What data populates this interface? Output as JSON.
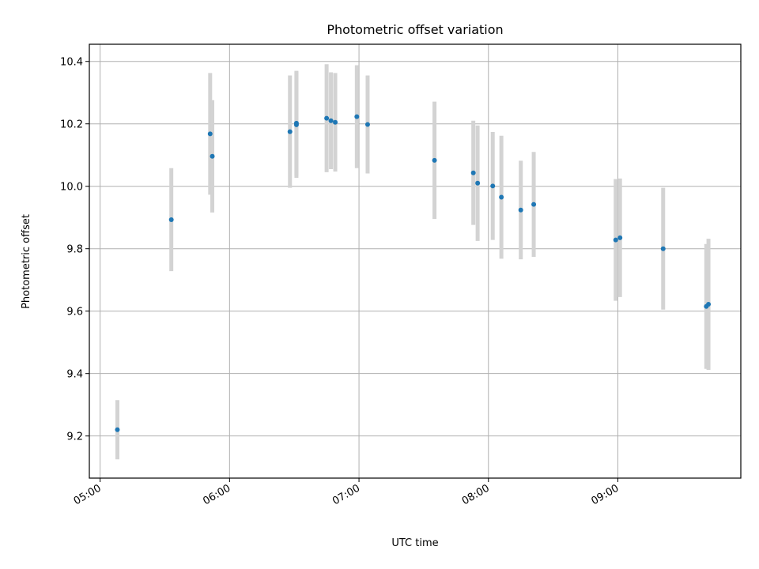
{
  "chart_data": {
    "type": "scatter",
    "title": "Photometric offset variation",
    "xlabel": "UTC time",
    "ylabel": "Photometric offset",
    "grid": true,
    "xlim": [
      "04:55",
      "09:57"
    ],
    "ylim": [
      9.065,
      10.455
    ],
    "x_ticks": [
      "05:00",
      "06:00",
      "07:00",
      "08:00",
      "09:00"
    ],
    "y_ticks": [
      "9.2",
      "9.4",
      "9.6",
      "9.8",
      "10.0",
      "10.2",
      "10.4"
    ],
    "colors": {
      "point": "#1f77b4",
      "errorbar": "#d3d3d3",
      "grid": "#b0b0b0"
    },
    "points": [
      {
        "t": "05:08",
        "y": 9.22,
        "err": 0.095
      },
      {
        "t": "05:33",
        "y": 9.893,
        "err": 0.165
      },
      {
        "t": "05:51",
        "y": 10.168,
        "err": 0.195
      },
      {
        "t": "05:52",
        "y": 10.096,
        "err": 0.18
      },
      {
        "t": "06:28",
        "y": 10.175,
        "err": 0.18
      },
      {
        "t": "06:31",
        "y": 10.202,
        "err": 0.168
      },
      {
        "t": "06:31",
        "y": 10.197,
        "err": 0.17
      },
      {
        "t": "06:45",
        "y": 10.218,
        "err": 0.173
      },
      {
        "t": "06:47",
        "y": 10.21,
        "err": 0.155
      },
      {
        "t": "06:49",
        "y": 10.205,
        "err": 0.158
      },
      {
        "t": "06:59",
        "y": 10.223,
        "err": 0.165
      },
      {
        "t": "07:04",
        "y": 10.198,
        "err": 0.157
      },
      {
        "t": "07:35",
        "y": 10.083,
        "err": 0.188
      },
      {
        "t": "07:53",
        "y": 10.043,
        "err": 0.167
      },
      {
        "t": "07:55",
        "y": 10.01,
        "err": 0.185
      },
      {
        "t": "08:02",
        "y": 10.001,
        "err": 0.173
      },
      {
        "t": "08:06",
        "y": 9.965,
        "err": 0.197
      },
      {
        "t": "08:15",
        "y": 9.924,
        "err": 0.158
      },
      {
        "t": "08:21",
        "y": 9.942,
        "err": 0.168
      },
      {
        "t": "08:59",
        "y": 9.828,
        "err": 0.195
      },
      {
        "t": "09:01",
        "y": 9.835,
        "err": 0.19
      },
      {
        "t": "09:21",
        "y": 9.8,
        "err": 0.195
      },
      {
        "t": "09:41",
        "y": 9.615,
        "err": 0.2
      },
      {
        "t": "09:42",
        "y": 9.622,
        "err": 0.21
      }
    ]
  }
}
